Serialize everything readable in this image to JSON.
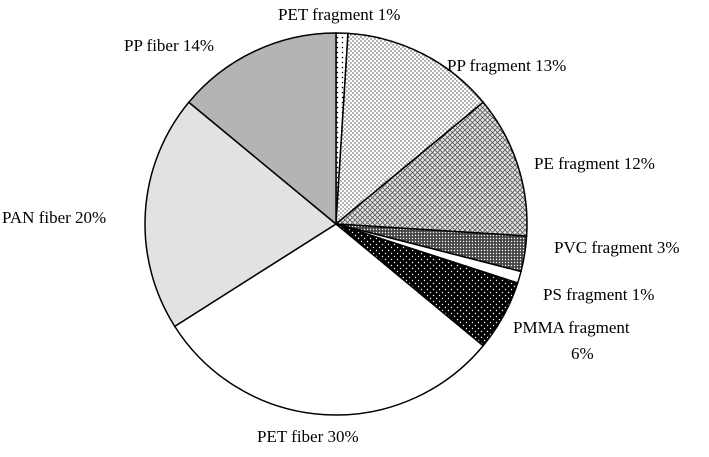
{
  "chart_data": {
    "type": "pie",
    "title": "",
    "slices": [
      {
        "label": "PET fragment 1%",
        "value": 1,
        "fill": "dots-sparse"
      },
      {
        "label": "PP fragment 13%",
        "value": 13,
        "fill": "dots-light"
      },
      {
        "label": "PE fragment 12%",
        "value": 12,
        "fill": "crosshatch"
      },
      {
        "label": "PVC fragment 3%",
        "value": 3,
        "fill": "dark-dots"
      },
      {
        "label": "PS fragment 1%",
        "value": 1,
        "fill": "white"
      },
      {
        "label": "PMMA fragment 6%",
        "label_lines": [
          "PMMA fragment",
          "6%"
        ],
        "value": 6,
        "fill": "black-dots"
      },
      {
        "label": "PET fiber 30%",
        "value": 30,
        "fill": "white"
      },
      {
        "label": "PAN fiber 20%",
        "value": 20,
        "fill": "light-gray"
      },
      {
        "label": "PP fiber 14%",
        "value": 14,
        "fill": "mid-gray"
      }
    ],
    "start": "12 o'clock",
    "direction": "clockwise",
    "colors": {
      "light-gray": "#e2e2e2",
      "mid-gray": "#b4b4b4",
      "white": "#ffffff",
      "black": "#000000"
    }
  }
}
